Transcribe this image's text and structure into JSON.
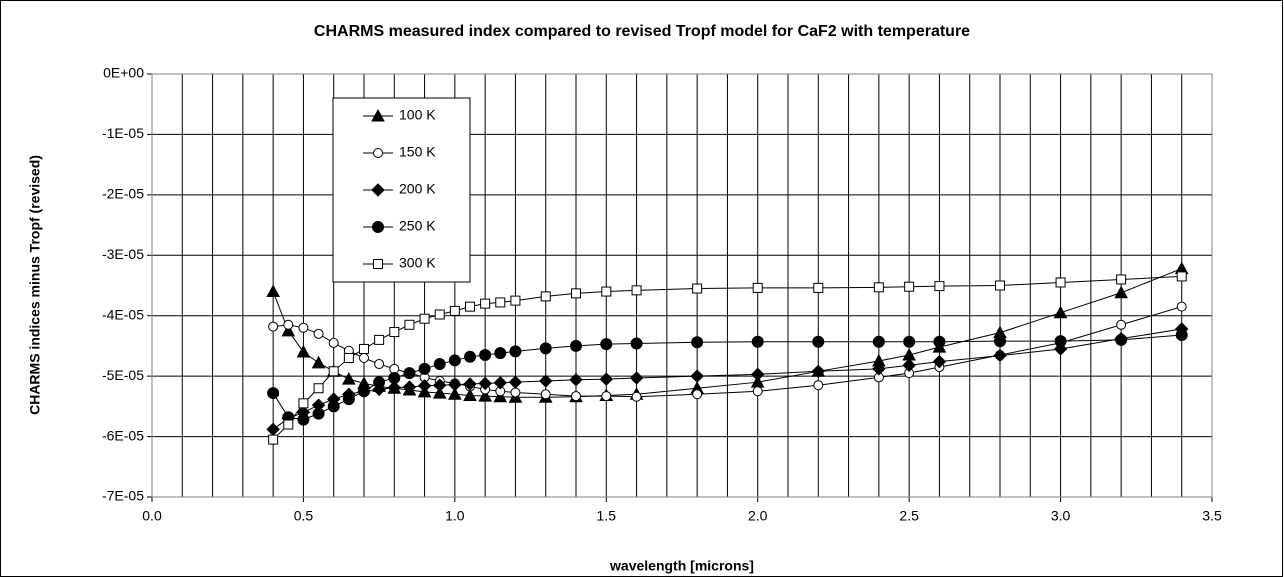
{
  "chart_data": {
    "type": "line",
    "title": "CHARMS measured index compared to revised Tropf model for CaF2 with temperature",
    "xlabel": "wavelength [microns]",
    "ylabel": "CHARMS indices minus Tropf (revised)",
    "xlim": [
      0,
      3.5
    ],
    "ylim": [
      -7e-05,
      0
    ],
    "xticks": [
      {
        "value": 0,
        "label": "0.0"
      },
      0.5,
      {
        "value": 1,
        "label": "1.0"
      },
      1.5,
      {
        "value": 2,
        "label": "2.0"
      },
      2.5,
      {
        "value": 3,
        "label": "3.0"
      },
      3.5
    ],
    "x_minor_grid_step": 0.1,
    "yticks": [
      {
        "value": 0,
        "label": "0E+00"
      },
      {
        "value": -1e-05,
        "label": "-1E-05"
      },
      {
        "value": -2e-05,
        "label": "-2E-05"
      },
      {
        "value": -3e-05,
        "label": "-3E-05"
      },
      {
        "value": -4e-05,
        "label": "-4E-05"
      },
      {
        "value": -5e-05,
        "label": "-5E-05"
      },
      {
        "value": -6e-05,
        "label": "-6E-05"
      },
      {
        "value": -7e-05,
        "label": "-7E-05"
      }
    ],
    "grid": true,
    "legend": "upper left",
    "x": [
      0.4,
      0.45,
      0.5,
      0.55,
      0.6,
      0.65,
      0.7,
      0.75,
      0.8,
      0.85,
      0.9,
      0.95,
      1.0,
      1.05,
      1.1,
      1.15,
      1.2,
      1.3,
      1.4,
      1.5,
      1.6,
      1.8,
      2.0,
      2.2,
      2.4,
      2.5,
      2.6,
      2.8,
      3.0,
      3.2,
      3.4
    ],
    "series": [
      {
        "name": "100 K",
        "color": "#000000",
        "marker": "triangle",
        "filled": true,
        "values": [
          -3.6e-05,
          -4.25e-05,
          -4.6e-05,
          -4.78e-05,
          -4.92e-05,
          -5.05e-05,
          -5.12e-05,
          -5.17e-05,
          -5.2e-05,
          -5.23e-05,
          -5.26e-05,
          -5.28e-05,
          -5.3e-05,
          -5.32e-05,
          -5.33e-05,
          -5.34e-05,
          -5.35e-05,
          -5.35e-05,
          -5.34e-05,
          -5.32e-05,
          -5.3e-05,
          -5.2e-05,
          -5.1e-05,
          -4.92e-05,
          -4.75e-05,
          -4.65e-05,
          -4.52e-05,
          -4.28e-05,
          -3.95e-05,
          -3.62e-05,
          -3.22e-05
        ]
      },
      {
        "name": "150 K",
        "color": "#000000",
        "marker": "circle",
        "filled": false,
        "values": [
          -4.18e-05,
          -4.15e-05,
          -4.2e-05,
          -4.3e-05,
          -4.45e-05,
          -4.58e-05,
          -4.7e-05,
          -4.8e-05,
          -4.88e-05,
          -4.95e-05,
          -5.02e-05,
          -5.08e-05,
          -5.12e-05,
          -5.17e-05,
          -5.22e-05,
          -5.25e-05,
          -5.27e-05,
          -5.3e-05,
          -5.33e-05,
          -5.33e-05,
          -5.34e-05,
          -5.3e-05,
          -5.25e-05,
          -5.15e-05,
          -5.02e-05,
          -4.95e-05,
          -4.85e-05,
          -4.65e-05,
          -4.45e-05,
          -4.15e-05,
          -3.85e-05
        ]
      },
      {
        "name": "200 K",
        "color": "#000000",
        "marker": "diamond",
        "filled": true,
        "values": [
          -5.88e-05,
          -5.7e-05,
          -5.6e-05,
          -5.48e-05,
          -5.38e-05,
          -5.3e-05,
          -5.25e-05,
          -5.22e-05,
          -5.19e-05,
          -5.18e-05,
          -5.16e-05,
          -5.15e-05,
          -5.14e-05,
          -5.13e-05,
          -5.12e-05,
          -5.11e-05,
          -5.1e-05,
          -5.08e-05,
          -5.06e-05,
          -5.05e-05,
          -5.03e-05,
          -5e-05,
          -4.97e-05,
          -4.92e-05,
          -4.88e-05,
          -4.82e-05,
          -4.76e-05,
          -4.66e-05,
          -4.55e-05,
          -4.38e-05,
          -4.22e-05
        ]
      },
      {
        "name": "250 K",
        "color": "#000000",
        "marker": "circle",
        "filled": true,
        "values": [
          -5.28e-05,
          -5.68e-05,
          -5.72e-05,
          -5.62e-05,
          -5.5e-05,
          -5.38e-05,
          -5.25e-05,
          -5.1e-05,
          -5.03e-05,
          -4.95e-05,
          -4.88e-05,
          -4.8e-05,
          -4.74e-05,
          -4.68e-05,
          -4.65e-05,
          -4.62e-05,
          -4.59e-05,
          -4.54e-05,
          -4.5e-05,
          -4.47e-05,
          -4.46e-05,
          -4.44e-05,
          -4.43e-05,
          -4.43e-05,
          -4.43e-05,
          -4.43e-05,
          -4.43e-05,
          -4.42e-05,
          -4.42e-05,
          -4.4e-05,
          -4.32e-05
        ]
      },
      {
        "name": "300 K",
        "color": "#000000",
        "marker": "square",
        "filled": false,
        "values": [
          -6.05e-05,
          -5.8e-05,
          -5.45e-05,
          -5.2e-05,
          -4.92e-05,
          -4.7e-05,
          -4.55e-05,
          -4.4e-05,
          -4.27e-05,
          -4.15e-05,
          -4.05e-05,
          -3.98e-05,
          -3.92e-05,
          -3.85e-05,
          -3.8e-05,
          -3.78e-05,
          -3.75e-05,
          -3.68e-05,
          -3.63e-05,
          -3.6e-05,
          -3.58e-05,
          -3.55e-05,
          -3.54e-05,
          -3.54e-05,
          -3.53e-05,
          -3.52e-05,
          -3.51e-05,
          -3.5e-05,
          -3.45e-05,
          -3.4e-05,
          -3.35e-05
        ]
      }
    ]
  }
}
